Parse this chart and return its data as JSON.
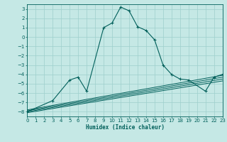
{
  "xlabel": "Humidex (Indice chaleur)",
  "xlim": [
    0,
    23
  ],
  "ylim": [
    -8.5,
    3.5
  ],
  "xticks": [
    0,
    1,
    2,
    3,
    4,
    5,
    6,
    7,
    8,
    9,
    10,
    11,
    12,
    13,
    14,
    15,
    16,
    17,
    18,
    19,
    20,
    21,
    22,
    23
  ],
  "yticks": [
    3,
    2,
    1,
    0,
    -1,
    -2,
    -3,
    -4,
    -5,
    -6,
    -7,
    -8
  ],
  "bg_color": "#c5e8e5",
  "grid_color": "#9ecfcc",
  "line_color": "#005f5a",
  "main_x": [
    0,
    3,
    5,
    6,
    7,
    9,
    10,
    11,
    12,
    13,
    14,
    15,
    16,
    17,
    18,
    19,
    21,
    22,
    23
  ],
  "main_y": [
    -8,
    -6.8,
    -4.6,
    -4.3,
    -5.8,
    1.0,
    1.5,
    3.2,
    2.8,
    1.1,
    0.7,
    -0.3,
    -3.0,
    -4.0,
    -4.5,
    -4.6,
    -5.8,
    -4.3,
    -4.0
  ],
  "trend_lines": [
    {
      "x": [
        0,
        23
      ],
      "y": [
        -7.8,
        -4.1
      ]
    },
    {
      "x": [
        0,
        23
      ],
      "y": [
        -7.9,
        -4.3
      ]
    },
    {
      "x": [
        0,
        23
      ],
      "y": [
        -8.0,
        -4.5
      ]
    },
    {
      "x": [
        0,
        23
      ],
      "y": [
        -8.1,
        -4.7
      ]
    }
  ]
}
